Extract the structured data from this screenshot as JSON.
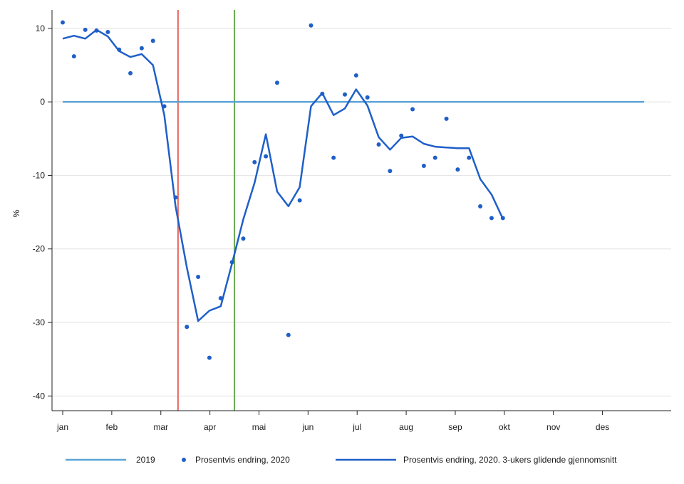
{
  "chart_data": {
    "type": "line",
    "title": "",
    "xlabel": "",
    "ylabel": "%",
    "ylim": [
      -42,
      12.5
    ],
    "yticks": [
      10,
      0,
      -10,
      -20,
      -30,
      -40
    ],
    "ytick_labels": [
      "10",
      "0",
      "-10",
      "-20",
      "-30",
      "-40"
    ],
    "xlim": [
      0,
      12.4
    ],
    "xticks": [
      0,
      1,
      2,
      3,
      4,
      5,
      6,
      7,
      8,
      9,
      10,
      11
    ],
    "xtick_labels": [
      "jan",
      "feb",
      "mar",
      "apr",
      "mai",
      "jun",
      "jul",
      "aug",
      "sep",
      "okt",
      "nov",
      "des"
    ],
    "grid": "horizontal",
    "legend_position": "bottom",
    "colors": {
      "baseline": "#5ba3d6",
      "series": "#1f5fc8",
      "vline_red": "#e8625a",
      "vline_green": "#6aaa52",
      "grid": "#e2e2e2",
      "axis": "#222222"
    },
    "vlines": [
      {
        "x": 2.35,
        "color": "red"
      },
      {
        "x": 3.5,
        "color": "green"
      }
    ],
    "series": [
      {
        "name": "2019",
        "kind": "line",
        "x": [
          0,
          11.85
        ],
        "y": [
          0,
          0
        ]
      },
      {
        "name": "Prosentvis endring, 2020",
        "kind": "scatter",
        "x": [
          0,
          0.23,
          0.46,
          0.69,
          0.92,
          1.15,
          1.38,
          1.61,
          1.84,
          2.07,
          2.3,
          2.53,
          2.76,
          2.99,
          3.22,
          3.45,
          3.68,
          3.91,
          4.14,
          4.37,
          4.6,
          4.83,
          5.06,
          5.29,
          5.52,
          5.75,
          5.98,
          6.21,
          6.44,
          6.67,
          6.9,
          7.13,
          7.36,
          7.59,
          7.82,
          8.05,
          8.28,
          8.51,
          8.74,
          8.97
        ],
        "y": [
          10.8,
          6.2,
          9.8,
          9.7,
          9.5,
          7.1,
          3.9,
          7.3,
          8.3,
          -0.6,
          -13.0,
          -30.6,
          -23.8,
          -34.8,
          -26.7,
          -21.8,
          -18.6,
          -8.2,
          -7.4,
          2.6,
          -31.7,
          -13.4,
          10.4,
          1.1,
          -7.6,
          1.0,
          3.6,
          0.6,
          -5.8,
          -9.4,
          -4.6,
          -1.0,
          -8.7,
          -7.6,
          -2.3,
          -9.2,
          -7.6,
          -14.2,
          -15.8,
          -15.8
        ]
      },
      {
        "name": "Prosentvis endring, 2020. 3-ukers glidende gjennomsnitt",
        "kind": "line",
        "x": [
          0,
          0.23,
          0.46,
          0.69,
          0.92,
          1.15,
          1.38,
          1.61,
          1.84,
          2.07,
          2.3,
          2.53,
          2.76,
          2.99,
          3.22,
          3.45,
          3.68,
          3.91,
          4.14,
          4.37,
          4.6,
          4.83,
          5.06,
          5.29,
          5.52,
          5.75,
          5.98,
          6.21,
          6.44,
          6.67,
          6.9,
          7.13,
          7.36,
          7.59,
          7.82,
          8.05,
          8.28,
          8.51,
          8.74,
          8.97
        ],
        "y": [
          8.6,
          9.0,
          8.6,
          9.8,
          8.9,
          6.9,
          6.1,
          6.5,
          5.0,
          -1.8,
          -14.2,
          -22.5,
          -29.8,
          -28.4,
          -27.8,
          -22.0,
          -16.0,
          -11.0,
          -4.4,
          -12.2,
          -14.2,
          -11.6,
          -0.6,
          1.2,
          -1.8,
          -0.9,
          1.7,
          -0.5,
          -4.8,
          -6.5,
          -4.9,
          -4.7,
          -5.7,
          -6.1,
          -6.2,
          -6.3,
          -6.3,
          -10.5,
          -12.6,
          -15.9
        ]
      }
    ],
    "legend": [
      {
        "label": "2019",
        "style": "line"
      },
      {
        "label": "Prosentvis endring, 2020",
        "style": "dot"
      },
      {
        "label": "Prosentvis endring, 2020. 3-ukers glidende gjennomsnitt",
        "style": "line"
      }
    ]
  }
}
